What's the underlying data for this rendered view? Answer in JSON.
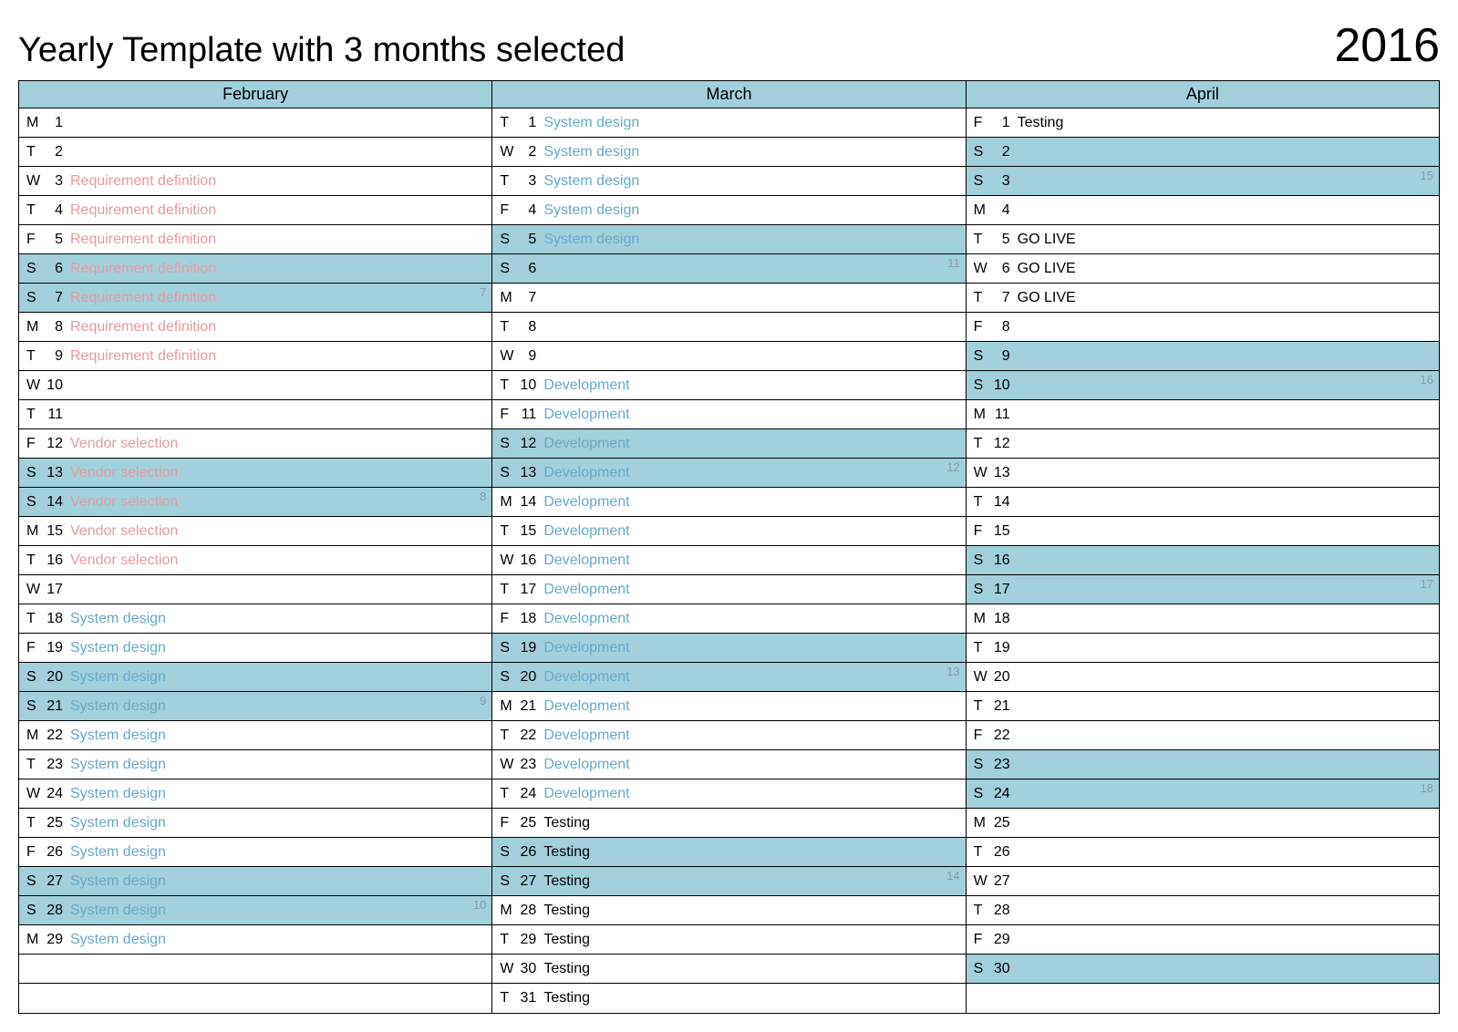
{
  "title": "Yearly Template with 3 months selected",
  "year": "2016",
  "colors": {
    "header_bg": "#a1d0db",
    "weekend_bg": "#a1d0db",
    "border": "#000000",
    "event_pink": "#e59aa0",
    "event_blue": "#6aa9c7",
    "event_black": "#000000",
    "week_num": "#8a9aa5"
  },
  "months": [
    {
      "name": "February",
      "days": [
        {
          "dow": "M",
          "num": "1",
          "event": "",
          "color": "",
          "weekend": false,
          "wk": ""
        },
        {
          "dow": "T",
          "num": "2",
          "event": "",
          "color": "",
          "weekend": false,
          "wk": ""
        },
        {
          "dow": "W",
          "num": "3",
          "event": "Requirement definition",
          "color": "#e59aa0",
          "weekend": false,
          "wk": ""
        },
        {
          "dow": "T",
          "num": "4",
          "event": "Requirement definition",
          "color": "#e59aa0",
          "weekend": false,
          "wk": ""
        },
        {
          "dow": "F",
          "num": "5",
          "event": "Requirement definition",
          "color": "#e59aa0",
          "weekend": false,
          "wk": ""
        },
        {
          "dow": "S",
          "num": "6",
          "event": "Requirement definition",
          "color": "#e59aa0",
          "weekend": true,
          "wk": ""
        },
        {
          "dow": "S",
          "num": "7",
          "event": "Requirement definition",
          "color": "#e59aa0",
          "weekend": true,
          "wk": "7"
        },
        {
          "dow": "M",
          "num": "8",
          "event": "Requirement definition",
          "color": "#e59aa0",
          "weekend": false,
          "wk": ""
        },
        {
          "dow": "T",
          "num": "9",
          "event": "Requirement definition",
          "color": "#e59aa0",
          "weekend": false,
          "wk": ""
        },
        {
          "dow": "W",
          "num": "10",
          "event": "",
          "color": "",
          "weekend": false,
          "wk": ""
        },
        {
          "dow": "T",
          "num": "11",
          "event": "",
          "color": "",
          "weekend": false,
          "wk": ""
        },
        {
          "dow": "F",
          "num": "12",
          "event": "Vendor selection",
          "color": "#e59aa0",
          "weekend": false,
          "wk": ""
        },
        {
          "dow": "S",
          "num": "13",
          "event": "Vendor selection",
          "color": "#e59aa0",
          "weekend": true,
          "wk": ""
        },
        {
          "dow": "S",
          "num": "14",
          "event": "Vendor selection",
          "color": "#e59aa0",
          "weekend": true,
          "wk": "8"
        },
        {
          "dow": "M",
          "num": "15",
          "event": "Vendor selection",
          "color": "#e59aa0",
          "weekend": false,
          "wk": ""
        },
        {
          "dow": "T",
          "num": "16",
          "event": "Vendor selection",
          "color": "#e59aa0",
          "weekend": false,
          "wk": ""
        },
        {
          "dow": "W",
          "num": "17",
          "event": "",
          "color": "",
          "weekend": false,
          "wk": ""
        },
        {
          "dow": "T",
          "num": "18",
          "event": "System design",
          "color": "#6aa9c7",
          "weekend": false,
          "wk": ""
        },
        {
          "dow": "F",
          "num": "19",
          "event": "System design",
          "color": "#6aa9c7",
          "weekend": false,
          "wk": ""
        },
        {
          "dow": "S",
          "num": "20",
          "event": "System design",
          "color": "#6aa9c7",
          "weekend": true,
          "wk": ""
        },
        {
          "dow": "S",
          "num": "21",
          "event": "System design",
          "color": "#6aa9c7",
          "weekend": true,
          "wk": "9"
        },
        {
          "dow": "M",
          "num": "22",
          "event": "System design",
          "color": "#6aa9c7",
          "weekend": false,
          "wk": ""
        },
        {
          "dow": "T",
          "num": "23",
          "event": "System design",
          "color": "#6aa9c7",
          "weekend": false,
          "wk": ""
        },
        {
          "dow": "W",
          "num": "24",
          "event": "System design",
          "color": "#6aa9c7",
          "weekend": false,
          "wk": ""
        },
        {
          "dow": "T",
          "num": "25",
          "event": "System design",
          "color": "#6aa9c7",
          "weekend": false,
          "wk": ""
        },
        {
          "dow": "F",
          "num": "26",
          "event": "System design",
          "color": "#6aa9c7",
          "weekend": false,
          "wk": ""
        },
        {
          "dow": "S",
          "num": "27",
          "event": "System design",
          "color": "#6aa9c7",
          "weekend": true,
          "wk": ""
        },
        {
          "dow": "S",
          "num": "28",
          "event": "System design",
          "color": "#6aa9c7",
          "weekend": true,
          "wk": "10"
        },
        {
          "dow": "M",
          "num": "29",
          "event": "System design",
          "color": "#6aa9c7",
          "weekend": false,
          "wk": ""
        },
        {
          "dow": "",
          "num": "",
          "event": "",
          "color": "",
          "weekend": false,
          "wk": ""
        },
        {
          "dow": "",
          "num": "",
          "event": "",
          "color": "",
          "weekend": false,
          "wk": ""
        }
      ]
    },
    {
      "name": "March",
      "days": [
        {
          "dow": "T",
          "num": "1",
          "event": "System design",
          "color": "#6aa9c7",
          "weekend": false,
          "wk": ""
        },
        {
          "dow": "W",
          "num": "2",
          "event": "System design",
          "color": "#6aa9c7",
          "weekend": false,
          "wk": ""
        },
        {
          "dow": "T",
          "num": "3",
          "event": "System design",
          "color": "#6aa9c7",
          "weekend": false,
          "wk": ""
        },
        {
          "dow": "F",
          "num": "4",
          "event": "System design",
          "color": "#6aa9c7",
          "weekend": false,
          "wk": ""
        },
        {
          "dow": "S",
          "num": "5",
          "event": "System design",
          "color": "#6aa9c7",
          "weekend": true,
          "wk": ""
        },
        {
          "dow": "S",
          "num": "6",
          "event": "",
          "color": "",
          "weekend": true,
          "wk": "11"
        },
        {
          "dow": "M",
          "num": "7",
          "event": "",
          "color": "",
          "weekend": false,
          "wk": ""
        },
        {
          "dow": "T",
          "num": "8",
          "event": "",
          "color": "",
          "weekend": false,
          "wk": ""
        },
        {
          "dow": "W",
          "num": "9",
          "event": "",
          "color": "",
          "weekend": false,
          "wk": ""
        },
        {
          "dow": "T",
          "num": "10",
          "event": "Development",
          "color": "#6aa9c7",
          "weekend": false,
          "wk": ""
        },
        {
          "dow": "F",
          "num": "11",
          "event": "Development",
          "color": "#6aa9c7",
          "weekend": false,
          "wk": ""
        },
        {
          "dow": "S",
          "num": "12",
          "event": "Development",
          "color": "#6aa9c7",
          "weekend": true,
          "wk": ""
        },
        {
          "dow": "S",
          "num": "13",
          "event": "Development",
          "color": "#6aa9c7",
          "weekend": true,
          "wk": "12"
        },
        {
          "dow": "M",
          "num": "14",
          "event": "Development",
          "color": "#6aa9c7",
          "weekend": false,
          "wk": ""
        },
        {
          "dow": "T",
          "num": "15",
          "event": "Development",
          "color": "#6aa9c7",
          "weekend": false,
          "wk": ""
        },
        {
          "dow": "W",
          "num": "16",
          "event": "Development",
          "color": "#6aa9c7",
          "weekend": false,
          "wk": ""
        },
        {
          "dow": "T",
          "num": "17",
          "event": "Development",
          "color": "#6aa9c7",
          "weekend": false,
          "wk": ""
        },
        {
          "dow": "F",
          "num": "18",
          "event": "Development",
          "color": "#6aa9c7",
          "weekend": false,
          "wk": ""
        },
        {
          "dow": "S",
          "num": "19",
          "event": "Development",
          "color": "#6aa9c7",
          "weekend": true,
          "wk": ""
        },
        {
          "dow": "S",
          "num": "20",
          "event": "Development",
          "color": "#6aa9c7",
          "weekend": true,
          "wk": "13"
        },
        {
          "dow": "M",
          "num": "21",
          "event": "Development",
          "color": "#6aa9c7",
          "weekend": false,
          "wk": ""
        },
        {
          "dow": "T",
          "num": "22",
          "event": "Development",
          "color": "#6aa9c7",
          "weekend": false,
          "wk": ""
        },
        {
          "dow": "W",
          "num": "23",
          "event": "Development",
          "color": "#6aa9c7",
          "weekend": false,
          "wk": ""
        },
        {
          "dow": "T",
          "num": "24",
          "event": "Development",
          "color": "#6aa9c7",
          "weekend": false,
          "wk": ""
        },
        {
          "dow": "F",
          "num": "25",
          "event": "Testing",
          "color": "#000000",
          "weekend": false,
          "wk": ""
        },
        {
          "dow": "S",
          "num": "26",
          "event": "Testing",
          "color": "#000000",
          "weekend": true,
          "wk": ""
        },
        {
          "dow": "S",
          "num": "27",
          "event": "Testing",
          "color": "#000000",
          "weekend": true,
          "wk": "14"
        },
        {
          "dow": "M",
          "num": "28",
          "event": "Testing",
          "color": "#000000",
          "weekend": false,
          "wk": ""
        },
        {
          "dow": "T",
          "num": "29",
          "event": "Testing",
          "color": "#000000",
          "weekend": false,
          "wk": ""
        },
        {
          "dow": "W",
          "num": "30",
          "event": "Testing",
          "color": "#000000",
          "weekend": false,
          "wk": ""
        },
        {
          "dow": "T",
          "num": "31",
          "event": "Testing",
          "color": "#000000",
          "weekend": false,
          "wk": ""
        }
      ]
    },
    {
      "name": "April",
      "days": [
        {
          "dow": "F",
          "num": "1",
          "event": "Testing",
          "color": "#000000",
          "weekend": false,
          "wk": ""
        },
        {
          "dow": "S",
          "num": "2",
          "event": "",
          "color": "",
          "weekend": true,
          "wk": ""
        },
        {
          "dow": "S",
          "num": "3",
          "event": "",
          "color": "",
          "weekend": true,
          "wk": "15"
        },
        {
          "dow": "M",
          "num": "4",
          "event": "",
          "color": "",
          "weekend": false,
          "wk": ""
        },
        {
          "dow": "T",
          "num": "5",
          "event": "GO LIVE",
          "color": "#000000",
          "weekend": false,
          "wk": ""
        },
        {
          "dow": "W",
          "num": "6",
          "event": "GO LIVE",
          "color": "#000000",
          "weekend": false,
          "wk": ""
        },
        {
          "dow": "T",
          "num": "7",
          "event": "GO LIVE",
          "color": "#000000",
          "weekend": false,
          "wk": ""
        },
        {
          "dow": "F",
          "num": "8",
          "event": "",
          "color": "",
          "weekend": false,
          "wk": ""
        },
        {
          "dow": "S",
          "num": "9",
          "event": "",
          "color": "",
          "weekend": true,
          "wk": ""
        },
        {
          "dow": "S",
          "num": "10",
          "event": "",
          "color": "",
          "weekend": true,
          "wk": "16"
        },
        {
          "dow": "M",
          "num": "11",
          "event": "",
          "color": "",
          "weekend": false,
          "wk": ""
        },
        {
          "dow": "T",
          "num": "12",
          "event": "",
          "color": "",
          "weekend": false,
          "wk": ""
        },
        {
          "dow": "W",
          "num": "13",
          "event": "",
          "color": "",
          "weekend": false,
          "wk": ""
        },
        {
          "dow": "T",
          "num": "14",
          "event": "",
          "color": "",
          "weekend": false,
          "wk": ""
        },
        {
          "dow": "F",
          "num": "15",
          "event": "",
          "color": "",
          "weekend": false,
          "wk": ""
        },
        {
          "dow": "S",
          "num": "16",
          "event": "",
          "color": "",
          "weekend": true,
          "wk": ""
        },
        {
          "dow": "S",
          "num": "17",
          "event": "",
          "color": "",
          "weekend": true,
          "wk": "17"
        },
        {
          "dow": "M",
          "num": "18",
          "event": "",
          "color": "",
          "weekend": false,
          "wk": ""
        },
        {
          "dow": "T",
          "num": "19",
          "event": "",
          "color": "",
          "weekend": false,
          "wk": ""
        },
        {
          "dow": "W",
          "num": "20",
          "event": "",
          "color": "",
          "weekend": false,
          "wk": ""
        },
        {
          "dow": "T",
          "num": "21",
          "event": "",
          "color": "",
          "weekend": false,
          "wk": ""
        },
        {
          "dow": "F",
          "num": "22",
          "event": "",
          "color": "",
          "weekend": false,
          "wk": ""
        },
        {
          "dow": "S",
          "num": "23",
          "event": "",
          "color": "",
          "weekend": true,
          "wk": ""
        },
        {
          "dow": "S",
          "num": "24",
          "event": "",
          "color": "",
          "weekend": true,
          "wk": "18"
        },
        {
          "dow": "M",
          "num": "25",
          "event": "",
          "color": "",
          "weekend": false,
          "wk": ""
        },
        {
          "dow": "T",
          "num": "26",
          "event": "",
          "color": "",
          "weekend": false,
          "wk": ""
        },
        {
          "dow": "W",
          "num": "27",
          "event": "",
          "color": "",
          "weekend": false,
          "wk": ""
        },
        {
          "dow": "T",
          "num": "28",
          "event": "",
          "color": "",
          "weekend": false,
          "wk": ""
        },
        {
          "dow": "F",
          "num": "29",
          "event": "",
          "color": "",
          "weekend": false,
          "wk": ""
        },
        {
          "dow": "S",
          "num": "30",
          "event": "",
          "color": "",
          "weekend": true,
          "wk": ""
        },
        {
          "dow": "",
          "num": "",
          "event": "",
          "color": "",
          "weekend": false,
          "wk": ""
        }
      ]
    }
  ]
}
